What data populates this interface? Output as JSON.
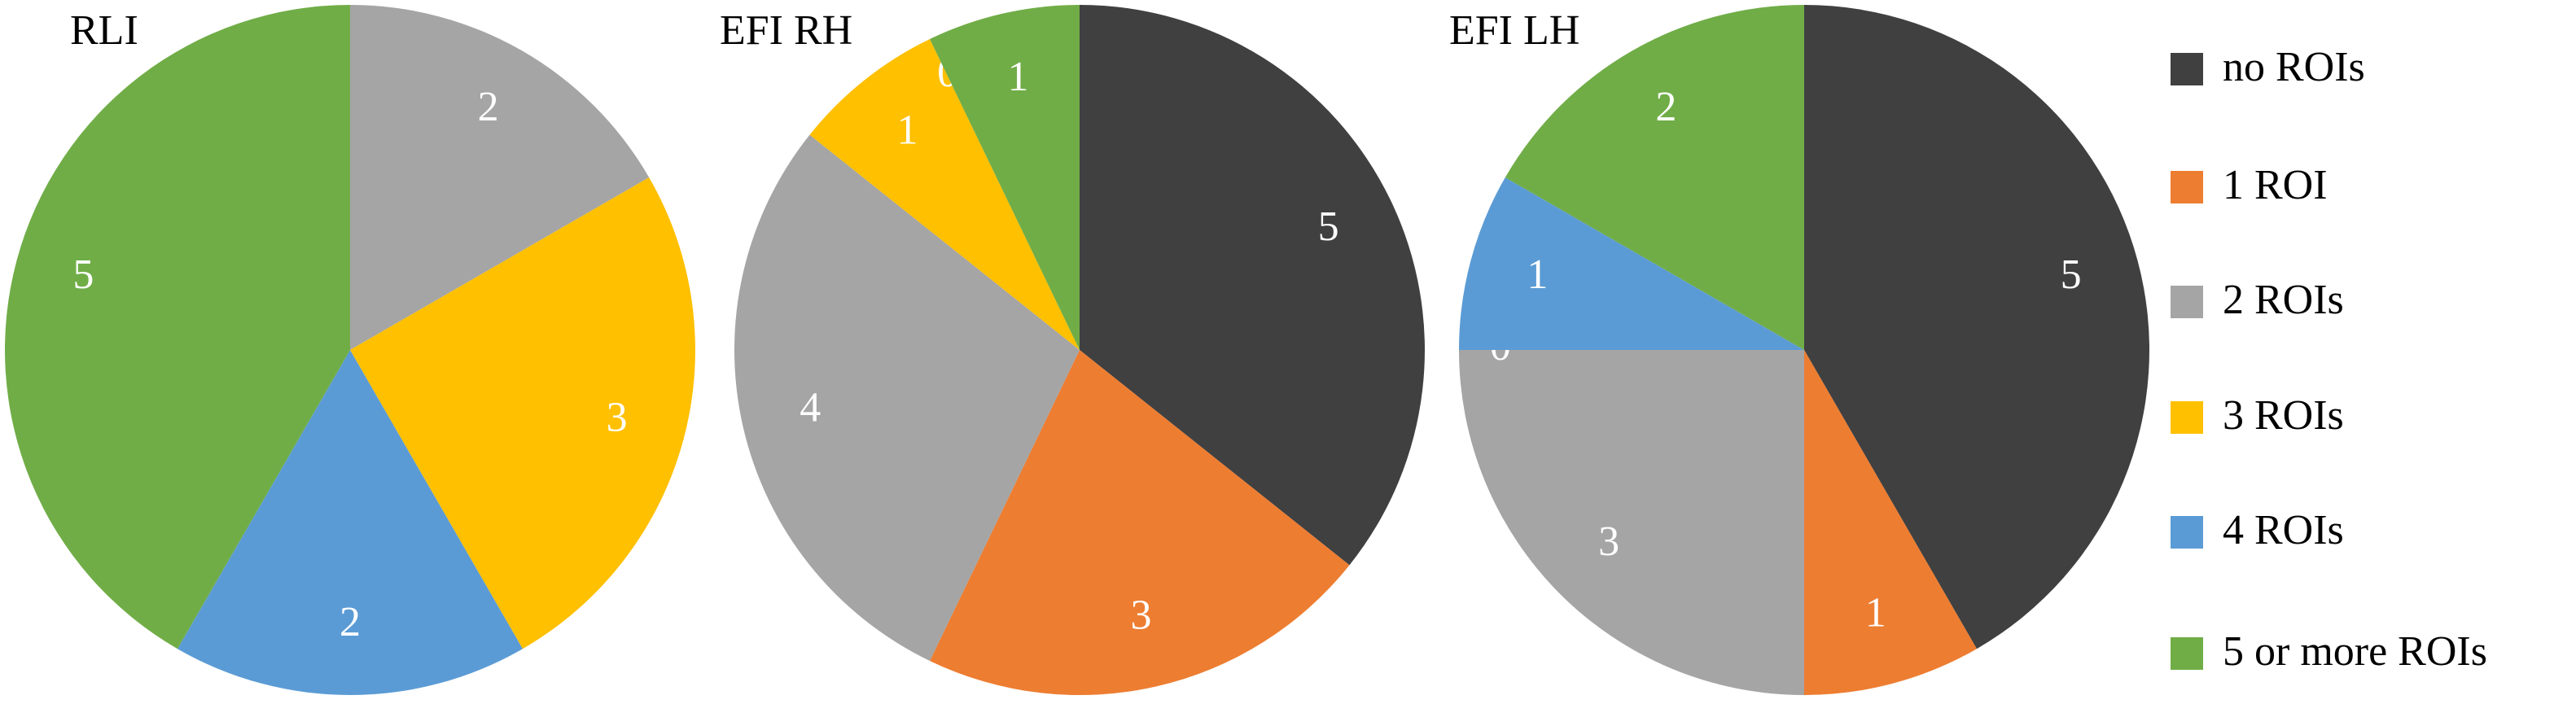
{
  "chart_data": [
    {
      "type": "pie",
      "title": "RLI",
      "categories": [
        "no ROIs",
        "1 ROI",
        "2 ROIs",
        "3 ROIs",
        "4 ROIs",
        "5 or more ROIs"
      ],
      "values": [
        0,
        null,
        2,
        3,
        2,
        5
      ],
      "colors": [
        "#404040",
        "#ed7d31",
        "#a5a5a5",
        "#ffc000",
        "#5b9bd5",
        "#70ad47"
      ]
    },
    {
      "type": "pie",
      "title": "EFI RH",
      "categories": [
        "no ROIs",
        "1 ROI",
        "2 ROIs",
        "3 ROIs",
        "4 ROIs",
        "5 or more ROIs"
      ],
      "values": [
        5,
        3,
        4,
        1,
        0,
        1
      ],
      "colors": [
        "#404040",
        "#ed7d31",
        "#a5a5a5",
        "#ffc000",
        "#5b9bd5",
        "#70ad47"
      ]
    },
    {
      "type": "pie",
      "title": "EFI LH",
      "categories": [
        "no ROIs",
        "1 ROI",
        "2 ROIs",
        "3 ROIs",
        "4 ROIs",
        "5 or more ROIs"
      ],
      "values": [
        5,
        1,
        3,
        0,
        1,
        2
      ],
      "colors": [
        "#404040",
        "#ed7d31",
        "#a5a5a5",
        "#ffc000",
        "#5b9bd5",
        "#70ad47"
      ]
    }
  ]
}
